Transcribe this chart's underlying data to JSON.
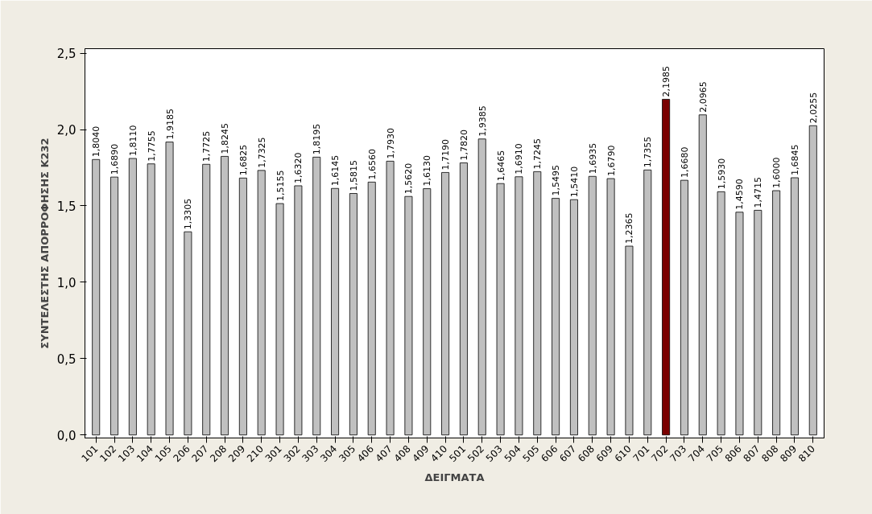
{
  "chart_data": {
    "type": "bar",
    "xlabel": "ΔΕΙΓΜΑΤΑ",
    "ylabel": "ΣΥΝΤΕΛΕΣΤΗΣ ΑΠΟΡΡΟΦΗΣΗΣ K232",
    "categories": [
      "101",
      "102",
      "103",
      "104",
      "105",
      "206",
      "207",
      "208",
      "209",
      "210",
      "301",
      "302",
      "303",
      "304",
      "305",
      "406",
      "407",
      "408",
      "409",
      "410",
      "501",
      "502",
      "503",
      "504",
      "505",
      "606",
      "607",
      "608",
      "609",
      "610",
      "701",
      "702",
      "703",
      "704",
      "705",
      "806",
      "807",
      "808",
      "809",
      "810"
    ],
    "values": [
      1.804,
      1.689,
      1.811,
      1.7755,
      1.9185,
      1.3305,
      1.7725,
      1.8245,
      1.6825,
      1.7325,
      1.5155,
      1.632,
      1.8195,
      1.6145,
      1.5815,
      1.656,
      1.793,
      1.562,
      1.613,
      1.719,
      1.782,
      1.9385,
      1.6465,
      1.691,
      1.7245,
      1.5495,
      1.541,
      1.6935,
      1.679,
      1.2365,
      1.7355,
      2.1985,
      1.668,
      2.0965,
      1.593,
      1.459,
      1.4715,
      1.6,
      1.6845,
      2.0255
    ],
    "value_labels": [
      "1,8040",
      "1,6890",
      "1,8110",
      "1,7755",
      "1,9185",
      "1,3305",
      "1,7725",
      "1,8245",
      "1,6825",
      "1,7325",
      "1,5155",
      "1,6320",
      "1,8195",
      "1,6145",
      "1,5815",
      "1,6560",
      "1,7930",
      "1,5620",
      "1,6130",
      "1,7190",
      "1,7820",
      "1,9385",
      "1,6465",
      "1,6910",
      "1,7245",
      "1,5495",
      "1,5410",
      "1,6935",
      "1,6790",
      "1,2365",
      "1,7355",
      "2,1985",
      "1,6680",
      "2,0965",
      "1,5930",
      "1,4590",
      "1,4715",
      "1,6000",
      "1,6845",
      "2,0255"
    ],
    "colors": [
      "#c0c0c0",
      "#c0c0c0",
      "#c0c0c0",
      "#c0c0c0",
      "#c0c0c0",
      "#c0c0c0",
      "#c0c0c0",
      "#c0c0c0",
      "#c0c0c0",
      "#c0c0c0",
      "#c0c0c0",
      "#c0c0c0",
      "#c0c0c0",
      "#c0c0c0",
      "#c0c0c0",
      "#c0c0c0",
      "#c0c0c0",
      "#c0c0c0",
      "#c0c0c0",
      "#c0c0c0",
      "#c0c0c0",
      "#c0c0c0",
      "#c0c0c0",
      "#c0c0c0",
      "#c0c0c0",
      "#c0c0c0",
      "#c0c0c0",
      "#c0c0c0",
      "#c0c0c0",
      "#c0c0c0",
      "#c0c0c0",
      "#7a0000",
      "#c0c0c0",
      "#c0c0c0",
      "#c0c0c0",
      "#c0c0c0",
      "#c0c0c0",
      "#c0c0c0",
      "#c0c0c0",
      "#c0c0c0"
    ],
    "ylim": [
      -0.02,
      2.53
    ],
    "yticks": [
      {
        "value": 0,
        "label": "0,0"
      },
      {
        "value": 0.5,
        "label": "0,5"
      },
      {
        "value": 1,
        "label": "1,0"
      },
      {
        "value": 1.5,
        "label": "1,5"
      },
      {
        "value": 2,
        "label": "2,0"
      },
      {
        "value": 2.5,
        "label": "2,5"
      }
    ],
    "grid": false
  }
}
